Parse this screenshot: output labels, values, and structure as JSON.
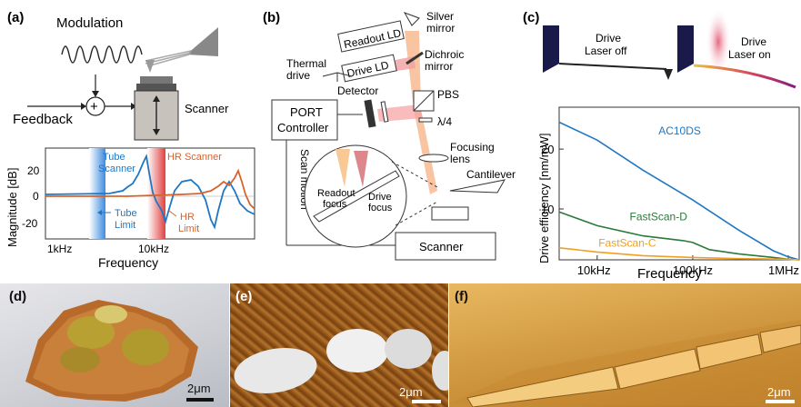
{
  "panel_a": {
    "label": "(a)",
    "modulation": "Modulation",
    "feedback": "Feedback",
    "scanner": "Scanner",
    "plus": "+",
    "plot": {
      "ylabel": "Magnitude [dB]",
      "xlabel": "Frequency",
      "yticks": [
        "20",
        "0",
        "-20"
      ],
      "xticks": [
        "1kHz",
        "10kHz"
      ],
      "tube_scanner": [
        "Tube",
        "Scanner"
      ],
      "hr_scanner": "HR Scanner",
      "tube_limit": [
        "Tube",
        "Limit"
      ],
      "hr_limit": [
        "HR",
        "Limit"
      ]
    }
  },
  "panel_b": {
    "label": "(b)",
    "readout_ld": "Readout LD",
    "silver_mirror": [
      "Silver",
      "mirror"
    ],
    "dichroic_mirror": [
      "Dichroic",
      "mirror"
    ],
    "thermal_drive": [
      "Thermal",
      "drive"
    ],
    "drive_ld": "Drive LD",
    "detector": "Detector",
    "pbs": "PBS",
    "quarter_wave": "λ/4",
    "port_controller": [
      "PORT",
      "Controller"
    ],
    "focusing_lens": [
      "Focusing",
      "lens"
    ],
    "cantilever": "Cantilever",
    "scan_motion": "Scan motion",
    "readout_focus": [
      "Readout",
      "focus"
    ],
    "drive_focus": [
      "Drive",
      "focus"
    ],
    "scanner": "Scanner"
  },
  "panel_c": {
    "label": "(c)",
    "laser_off": [
      "Drive",
      "Laser off"
    ],
    "laser_on": [
      "Drive",
      "Laser on"
    ],
    "chart_data": {
      "type": "line",
      "ylabel": "Drive efficiency [nm/mW]",
      "xlabel": "Frequency",
      "x_log_scale": true,
      "xticks": [
        "10kHz",
        "100kHz",
        "1MHz"
      ],
      "yticks": [
        "10",
        "20"
      ],
      "xlim": [
        4000,
        1300000
      ],
      "ylim": [
        1.5,
        27
      ],
      "series": [
        {
          "name": "AC10DS",
          "color": "#1f77c4",
          "x": [
            4000,
            10000,
            30000,
            100000,
            300000,
            700000,
            1000000,
            1300000
          ],
          "y": [
            24.5,
            21.5,
            16.5,
            11.5,
            6.5,
            3.0,
            2.0,
            1.5
          ]
        },
        {
          "name": "FastScan-D",
          "color": "#2a7a3a",
          "x": [
            4000,
            10000,
            30000,
            80000,
            100000,
            150000,
            300000,
            700000,
            1000000,
            1300000
          ],
          "y": [
            9.5,
            7.2,
            5.5,
            4.7,
            4.4,
            3.2,
            2.5,
            1.9,
            1.6,
            1.5
          ]
        },
        {
          "name": "FastScan-C",
          "color": "#f0a020",
          "x": [
            4000,
            10000,
            30000,
            100000,
            300000,
            1000000,
            1300000
          ],
          "y": [
            3.5,
            2.8,
            2.2,
            1.9,
            1.7,
            1.6,
            1.5
          ]
        }
      ]
    }
  },
  "panel_d": {
    "label": "(d)",
    "scale": "2μm"
  },
  "panel_e": {
    "label": "(e)",
    "scale": "2μm"
  },
  "panel_f": {
    "label": "(f)",
    "scale": "2μm"
  },
  "colors": {
    "tube_blue": "#1f77c4",
    "hr_orange": "#d9622b",
    "laser_pink": "#f0a0a0",
    "laser_orange": "#f7b58a"
  }
}
